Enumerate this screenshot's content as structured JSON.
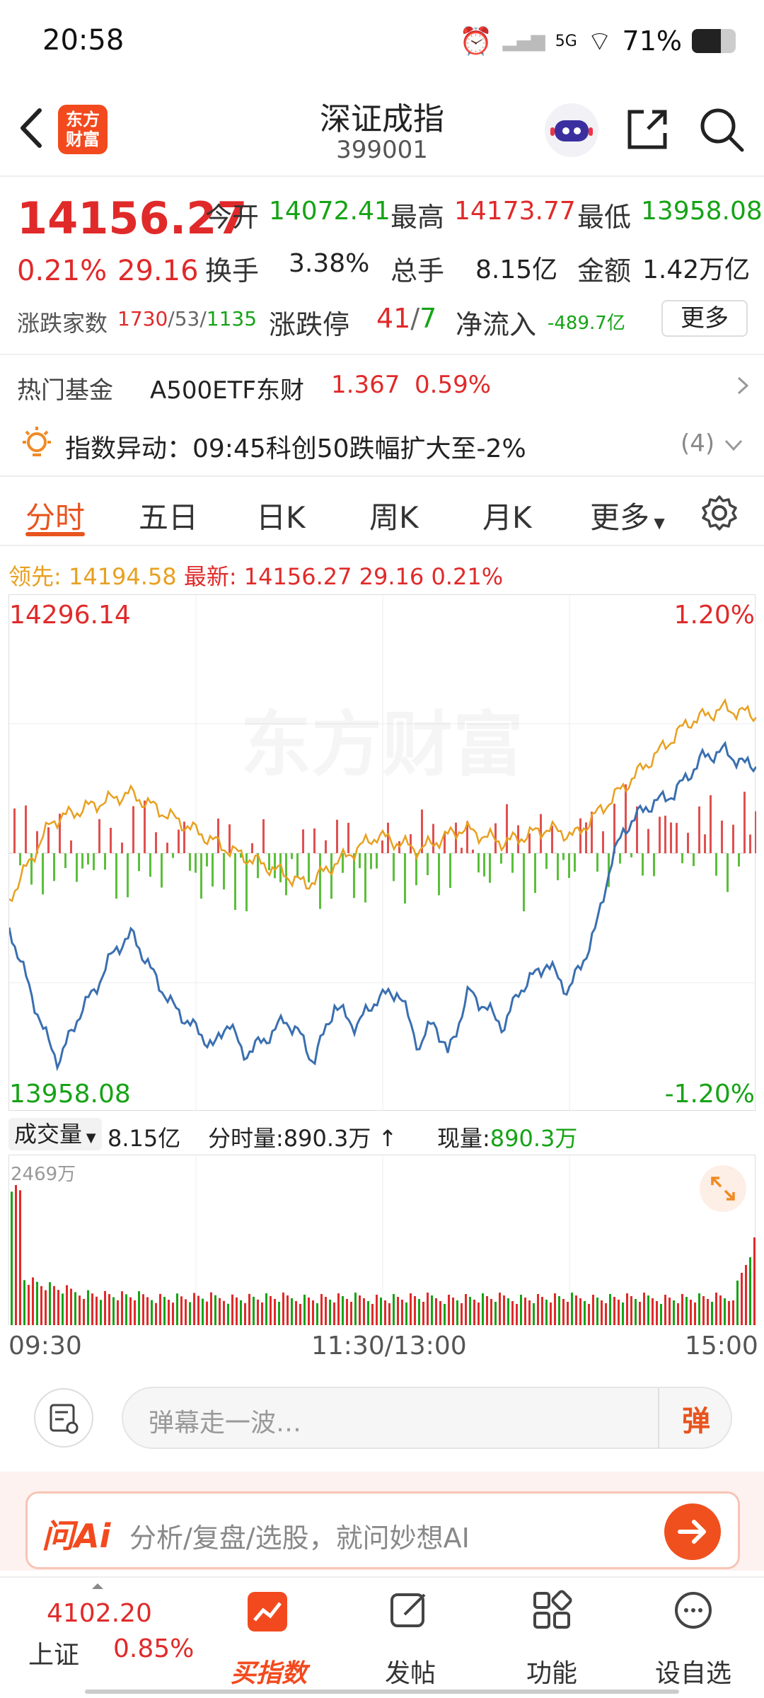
{
  "status": {
    "time": "20:58",
    "battery": "71%",
    "network": "5G"
  },
  "header": {
    "logo_text": "东方财富",
    "title": "深证成指",
    "code": "399001"
  },
  "quote": {
    "price": "14156.27",
    "change_pct": "0.21%",
    "change": "29.16",
    "open_label": "今开",
    "open": "14072.41",
    "high_label": "最高",
    "high": "14173.77",
    "low_label": "最低",
    "low": "13958.08",
    "turnover_label": "换手",
    "turnover": "3.38%",
    "volume_label": "总手",
    "volume": "8.15亿",
    "amount_label": "金额",
    "amount": "1.42万亿",
    "breadth_label": "涨跌家数",
    "up_count": "1730",
    "flat_count": "53",
    "down_count": "1135",
    "limit_label": "涨跌停",
    "limit_up": "41",
    "limit_down": "7",
    "netflow_label": "净流入",
    "netflow": "-489.7亿",
    "more_label": "更多"
  },
  "hot_fund": {
    "label": "热门基金",
    "name": "A500ETF东财",
    "price": "1.367",
    "pct": "0.59%"
  },
  "alert": {
    "text": "指数异动：09:45科创50跌幅扩大至-2%",
    "count": "(4)"
  },
  "tabs": [
    "分时",
    "五日",
    "日K",
    "周K",
    "月K",
    "更多"
  ],
  "legend": {
    "lead_label": "领先:",
    "lead": "14194.58",
    "latest_label": "最新:",
    "latest": "14156.27",
    "chg": "29.16",
    "pct": "0.21%"
  },
  "chart": {
    "top_price": "14296.14",
    "bottom_price": "13958.08",
    "top_pct": "1.20%",
    "bottom_pct": "-1.20%",
    "watermark": "东方财富"
  },
  "volume": {
    "selector_label": "成交量",
    "total": "8.15亿",
    "minute_label": "分时量:",
    "minute": "890.3万",
    "current_label": "现量:",
    "current": "890.3万",
    "max": "2469万"
  },
  "time_axis": [
    "09:30",
    "11:30/13:00",
    "15:00"
  ],
  "comment": {
    "placeholder": "弹幕走一波…",
    "danmu_label": "弹"
  },
  "ai": {
    "brand": "问Ai",
    "placeholder": "分析/复盘/选股，就问妙想AI"
  },
  "nav": {
    "index_value": "4102.20",
    "index_name": "上证",
    "index_pct": "0.85%",
    "items": [
      "买指数",
      "发帖",
      "功能",
      "设自选"
    ]
  },
  "colors": {
    "up": "#e02a2a",
    "down": "#16a316",
    "price_line": "#3a6fb0",
    "avg_line": "#e8a020",
    "brand": "#f24a1e"
  },
  "chart_data": {
    "type": "line",
    "x": [
      "09:30",
      "11:30/13:00",
      "15:00"
    ],
    "ylim": [
      13958.08,
      14296.14
    ],
    "series": [],
    "volume_max": 2469
  }
}
